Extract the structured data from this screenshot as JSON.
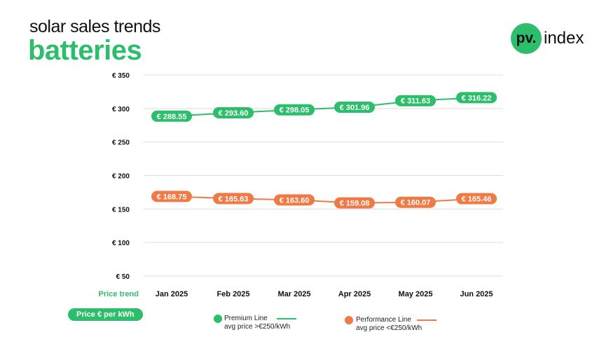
{
  "header": {
    "title": "solar sales trends",
    "subtitle": "batteries"
  },
  "logo": {
    "mark": "pv.",
    "text": "index"
  },
  "colors": {
    "premium": "#2dbe6c",
    "performance": "#f07a45",
    "grid": "#dddddd"
  },
  "chart_data": {
    "type": "line",
    "categories": [
      "Jan 2025",
      "Feb 2025",
      "Mar 2025",
      "Apr 2025",
      "May 2025",
      "Jun 2025"
    ],
    "x_axis_title": "Price trend",
    "y_axis_title": "Price € per kWh",
    "ylim": [
      50,
      350
    ],
    "yticks": [
      350,
      300,
      250,
      200,
      150,
      100,
      50
    ],
    "ytick_labels": [
      "€ 350",
      "€ 300",
      "€ 250",
      "€ 200",
      "€ 150",
      "€ 100",
      "€ 50"
    ],
    "grid": true,
    "legend_position": "bottom",
    "series": [
      {
        "name": "Premium Line",
        "description": "avg price >€250/kWh",
        "values": [
          288.55,
          293.6,
          298.05,
          301.96,
          311.63,
          316.22
        ],
        "labels": [
          "€ 288.55",
          "€ 293.60",
          "€ 298.05",
          "€ 301.96",
          "€ 311.63",
          "€ 316.22"
        ]
      },
      {
        "name": "Performance Line",
        "description": "avg price <€250/kWh",
        "values": [
          168.75,
          165.63,
          163.6,
          159.08,
          160.07,
          165.46
        ],
        "labels": [
          "€ 168.75",
          "€ 165.63",
          "€ 163.60",
          "€ 159.08",
          "€ 160.07",
          "€ 165.46"
        ]
      }
    ]
  }
}
